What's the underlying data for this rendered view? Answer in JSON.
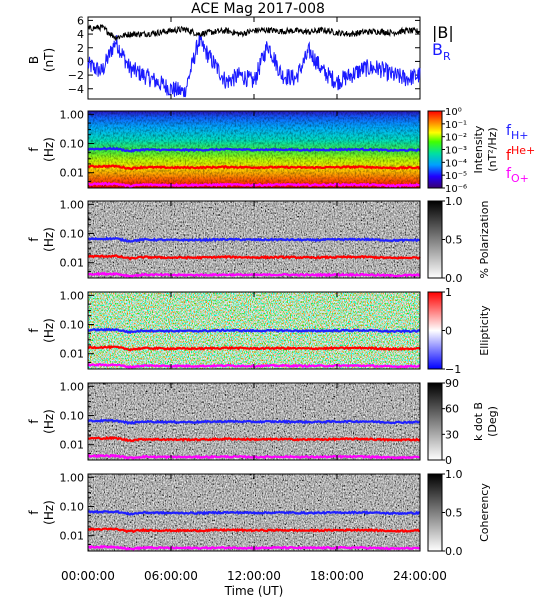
{
  "title": "ACE Mag 2017-008",
  "xaxis": {
    "label": "Time (UT)",
    "ticks": [
      "00:00:00",
      "06:00:00",
      "12:00:00",
      "18:00:00",
      "24:00:00"
    ],
    "range_hours": [
      0,
      24
    ]
  },
  "legends": {
    "field": [
      {
        "text": "|B|",
        "color": "#000000"
      },
      {
        "text": "B",
        "sub": "R",
        "color": "#1a1aff"
      }
    ],
    "gyro": [
      {
        "text": "f",
        "sub": "H+",
        "color": "#2020ff"
      },
      {
        "text": "f",
        "sub": "He+",
        "color": "#ff0000"
      },
      {
        "text": "f",
        "sub": "O+",
        "color": "#ff00ff"
      }
    ]
  },
  "panels": {
    "b": {
      "ylabel": "B",
      "yunit": "(nT)",
      "ticks": [
        "6",
        "4",
        "2",
        "0",
        "−2",
        "−4"
      ]
    },
    "freq_ticks": [
      "1.00",
      "0.10",
      "0.01"
    ],
    "freq_label": "f",
    "freq_unit": "(Hz)",
    "spec": [
      {
        "id": "intensity",
        "bar": "rainbow",
        "cb_label1": "Intensity",
        "cb_label2": "(nT²/Hz)",
        "cb_ticks": [
          "10⁰",
          "10⁻¹",
          "10⁻²",
          "10⁻³",
          "10⁻⁴",
          "10⁻⁵",
          "10⁻⁶"
        ]
      },
      {
        "id": "polarization",
        "bar": "gray",
        "cb_label1": "% Polarization",
        "cb_label2": "",
        "cb_ticks": [
          "1.0",
          "0.5",
          "0.0"
        ]
      },
      {
        "id": "ellipticity",
        "bar": "bwr",
        "cb_label1": "Ellipticity",
        "cb_label2": "",
        "cb_ticks": [
          "1",
          "0",
          "−1"
        ]
      },
      {
        "id": "kdotb",
        "bar": "gray",
        "cb_label1": "k dot B",
        "cb_label2": "(Deg)",
        "cb_ticks": [
          "90",
          "60",
          "30",
          "0"
        ]
      },
      {
        "id": "coherency",
        "bar": "gray",
        "cb_label1": "Coherency",
        "cb_label2": "",
        "cb_ticks": [
          "1.0",
          "0.5",
          "0.0"
        ]
      }
    ]
  },
  "chart_data": [
    {
      "type": "line",
      "title": "ACE Mag 2017-008",
      "xlabel": "Time (UT)",
      "ylabel": "B (nT)",
      "xlim": [
        0,
        24
      ],
      "ylim": [
        -5.5,
        6.5
      ],
      "series": [
        {
          "name": "|B|",
          "color": "#000000",
          "x": [
            0,
            1,
            2,
            3,
            4,
            5,
            6,
            7,
            8,
            9,
            10,
            11,
            12,
            13,
            14,
            15,
            16,
            17,
            18,
            19,
            20,
            21,
            22,
            23,
            24
          ],
          "y": [
            4.8,
            5.0,
            3.5,
            4.0,
            4.0,
            4.2,
            4.5,
            4.7,
            4.0,
            4.3,
            4.5,
            4.0,
            4.5,
            4.6,
            4.4,
            4.5,
            4.3,
            4.6,
            4.2,
            4.0,
            4.3,
            4.4,
            4.2,
            4.5,
            4.4
          ]
        },
        {
          "name": "B_R",
          "color": "#1a1aff",
          "x": [
            0,
            1,
            2,
            3,
            4,
            5,
            6,
            7,
            8,
            9,
            10,
            11,
            12,
            13,
            14,
            15,
            16,
            17,
            18,
            19,
            20,
            21,
            22,
            23,
            24
          ],
          "y": [
            -0.5,
            -1.5,
            3.0,
            -1.0,
            -2.0,
            -3.0,
            -4.0,
            -4.5,
            3.0,
            0.0,
            -3.0,
            -2.0,
            -3.0,
            2.5,
            -2.0,
            -2.5,
            1.5,
            -1.5,
            -3.0,
            -2.0,
            -1.0,
            -1.0,
            -2.0,
            -2.5,
            -2.0
          ]
        }
      ]
    },
    {
      "type": "heatmap",
      "panels": [
        "Intensity (nT²/Hz)",
        "% Polarization",
        "Ellipticity",
        "k dot B (Deg)",
        "Coherency"
      ],
      "xlim": [
        0,
        24
      ],
      "ylim": [
        0.003,
        1.3
      ],
      "yscale": "log",
      "ylabel": "f (Hz)",
      "overlays": [
        {
          "name": "f_H+",
          "color": "#2020ff",
          "x": [
            0,
            2,
            3,
            4,
            6,
            8,
            10,
            12,
            14,
            16,
            18,
            20,
            22,
            24
          ],
          "y": [
            0.065,
            0.067,
            0.055,
            0.062,
            0.06,
            0.06,
            0.063,
            0.061,
            0.062,
            0.06,
            0.062,
            0.063,
            0.058,
            0.06
          ]
        },
        {
          "name": "f_He+",
          "color": "#ff0000",
          "x": [
            0,
            2,
            3,
            4,
            6,
            8,
            10,
            12,
            14,
            16,
            18,
            20,
            22,
            24
          ],
          "y": [
            0.0165,
            0.0168,
            0.014,
            0.0155,
            0.015,
            0.015,
            0.0158,
            0.0152,
            0.0155,
            0.015,
            0.0155,
            0.0158,
            0.0145,
            0.015
          ]
        },
        {
          "name": "f_O+",
          "color": "#ff00ff",
          "x": [
            0,
            2,
            3,
            4,
            6,
            8,
            10,
            12,
            14,
            16,
            18,
            20,
            22,
            24
          ],
          "y": [
            0.0041,
            0.0042,
            0.0035,
            0.0039,
            0.0038,
            0.0038,
            0.0039,
            0.0038,
            0.0039,
            0.0038,
            0.0039,
            0.0039,
            0.0036,
            0.0038
          ]
        }
      ],
      "colorbars": [
        {
          "panel": "Intensity",
          "scale": "log",
          "range": [
            "10⁻⁶",
            "10⁰"
          ]
        },
        {
          "panel": "% Polarization",
          "range": [
            0,
            1
          ]
        },
        {
          "panel": "Ellipticity",
          "range": [
            -1,
            1
          ]
        },
        {
          "panel": "k dot B",
          "range": [
            0,
            90
          ]
        },
        {
          "panel": "Coherency",
          "range": [
            0,
            1
          ]
        }
      ]
    }
  ]
}
